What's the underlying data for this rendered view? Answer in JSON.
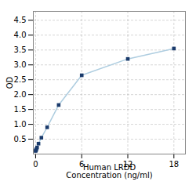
{
  "chart_data": {
    "type": "line",
    "xlabel": "Human LRDD\nConcentration (ng/ml)",
    "ylabel": "OD",
    "x": [
      0.0,
      0.047,
      0.094,
      0.188,
      0.375,
      0.75,
      1.5,
      3.0,
      6.0,
      12.0,
      18.0
    ],
    "series": [
      {
        "type": "line",
        "color": "#aecde0",
        "line_style": "solid",
        "values": [
          0.105,
          0.13,
          0.165,
          0.22,
          0.35,
          0.55,
          0.9,
          1.65,
          2.65,
          3.2,
          3.55
        ]
      },
      {
        "type": "scatter",
        "color": "#1a3a6b",
        "marker": "square",
        "values": [
          0.105,
          0.13,
          0.165,
          0.22,
          0.35,
          0.55,
          0.9,
          1.65,
          2.65,
          3.2,
          3.55
        ]
      }
    ],
    "xlim": [
      -0.3,
      19.5
    ],
    "xticks": [
      0,
      6,
      12,
      18
    ],
    "ylim": [
      0,
      4.8
    ],
    "yticks": [
      0.5,
      {
        "value": 1,
        "label": "1.0"
      },
      1.5,
      {
        "value": 2,
        "label": "2.0"
      },
      2.5,
      {
        "value": 3,
        "label": "3.0"
      },
      3.5,
      {
        "value": 4,
        "label": "4.0"
      },
      4.5
    ],
    "grid": true
  }
}
